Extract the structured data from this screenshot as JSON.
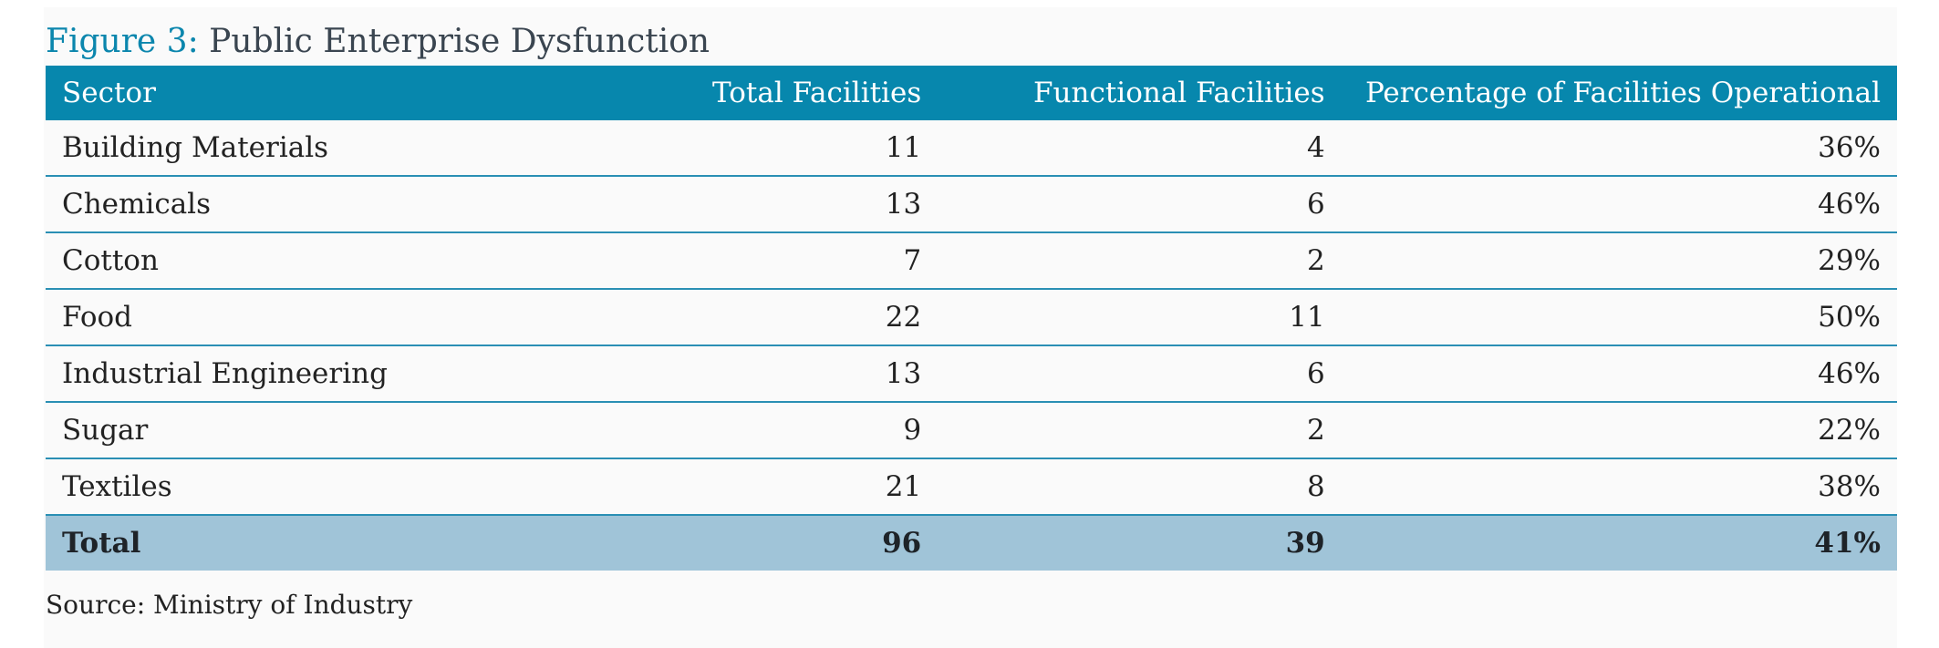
{
  "figure": {
    "label": "Figure 3:",
    "title": "Public Enterprise Dysfunction",
    "source": "Source: Ministry of Industry"
  },
  "colors": {
    "header_bg": "#0787ad",
    "title_accent": "#0b86ad",
    "total_row_bg": "#a0c4d8",
    "row_divider": "#2a8fb4"
  },
  "chart_data": {
    "type": "table",
    "title": "Public Enterprise Dysfunction",
    "columns": [
      "Sector",
      "Total Facilities",
      "Functional Facilities",
      "Percentage of Facilities Operational"
    ],
    "rows": [
      [
        "Building Materials",
        "11",
        "4",
        "36%"
      ],
      [
        "Chemicals",
        "13",
        "6",
        "46%"
      ],
      [
        "Cotton",
        "7",
        "2",
        "29%"
      ],
      [
        "Food",
        "22",
        "11",
        "50%"
      ],
      [
        "Industrial Engineering",
        "13",
        "6",
        "46%"
      ],
      [
        "Sugar",
        "9",
        "2",
        "22%"
      ],
      [
        "Textiles",
        "21",
        "8",
        "38%"
      ]
    ],
    "total": [
      "Total",
      "96",
      "39",
      "41%"
    ]
  }
}
